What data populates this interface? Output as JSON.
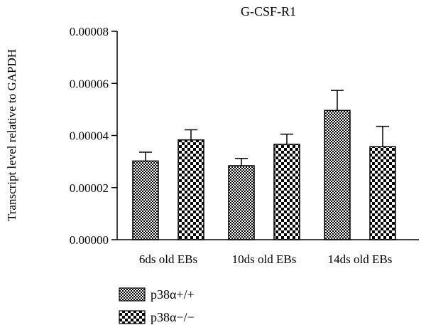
{
  "chart_data": {
    "type": "bar",
    "title": "G-CSF-R1",
    "xlabel": "",
    "ylabel": "Transcript level relative to GAPDH",
    "categories": [
      "6ds old EBs",
      "10ds old EBs",
      "14ds old EBs"
    ],
    "ylim": [
      0,
      8e-05
    ],
    "yticks": [
      "0.00000",
      "0.00002",
      "0.00004",
      "0.00006",
      "0.00008"
    ],
    "ytick_values": [
      0,
      2e-05,
      4e-05,
      6e-05,
      8e-05
    ],
    "grid": false,
    "legend_position": "bottom-left",
    "series": [
      {
        "name": "p38α+/+",
        "pattern": "fine-checker",
        "values": [
          3.02e-05,
          2.84e-05,
          4.96e-05
        ],
        "errors": [
          3.4e-06,
          2.8e-06,
          7.7e-06
        ]
      },
      {
        "name": "p38α−/−",
        "pattern": "coarse-checker",
        "values": [
          3.83e-05,
          3.66e-05,
          3.57e-05
        ],
        "errors": [
          3.9e-06,
          3.9e-06,
          7.8e-06
        ]
      }
    ],
    "colors": {
      "ink": "#000000",
      "background": "#ffffff"
    }
  }
}
